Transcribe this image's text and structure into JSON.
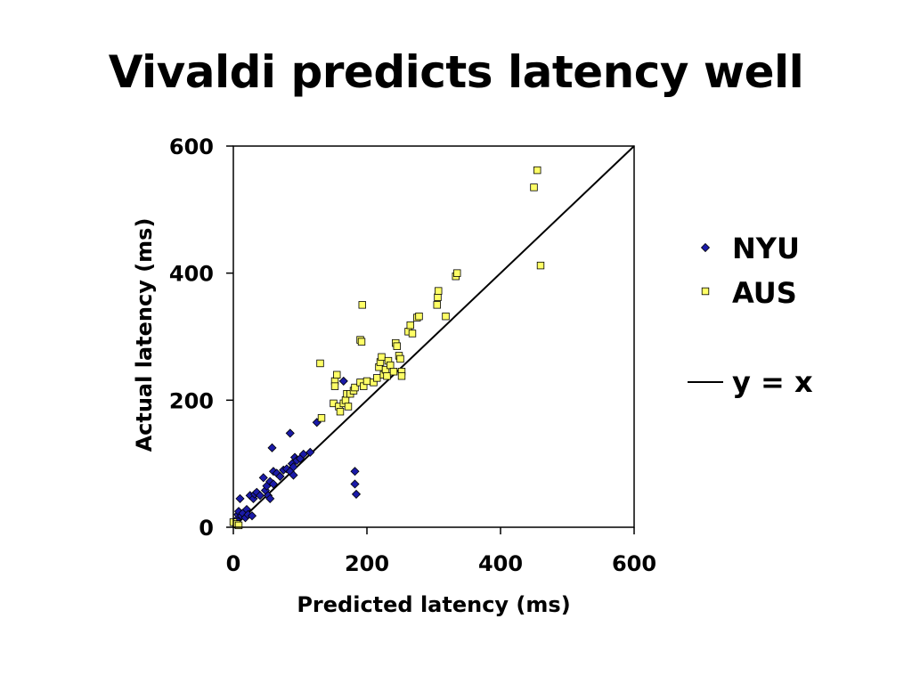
{
  "slide": {
    "title": "Vivaldi predicts latency well"
  },
  "chart_data": {
    "type": "scatter",
    "title": "Vivaldi predicts latency well",
    "xlabel": "Predicted latency (ms)",
    "ylabel": "Actual latency (ms)",
    "xlim": [
      0,
      600
    ],
    "ylim": [
      0,
      600
    ],
    "xticks": [
      0,
      200,
      400,
      600
    ],
    "yticks": [
      0,
      200,
      400,
      600
    ],
    "x_tick_labels": [
      "0",
      "200",
      "400",
      "600"
    ],
    "y_tick_labels": [
      "0",
      "200",
      "400",
      "600"
    ],
    "grid": false,
    "legend_position": "right",
    "reference_line": {
      "label": "y = x",
      "color": "#000000"
    },
    "series": [
      {
        "name": "NYU",
        "marker": "diamond",
        "color": "#1a1aa8",
        "points": [
          [
            2,
            5
          ],
          [
            5,
            12
          ],
          [
            7,
            20
          ],
          [
            8,
            25
          ],
          [
            10,
            45
          ],
          [
            12,
            18
          ],
          [
            14,
            22
          ],
          [
            18,
            15
          ],
          [
            20,
            28
          ],
          [
            22,
            20
          ],
          [
            25,
            50
          ],
          [
            28,
            18
          ],
          [
            30,
            45
          ],
          [
            32,
            52
          ],
          [
            35,
            55
          ],
          [
            40,
            50
          ],
          [
            45,
            78
          ],
          [
            48,
            58
          ],
          [
            50,
            65
          ],
          [
            52,
            50
          ],
          [
            55,
            45
          ],
          [
            55,
            72
          ],
          [
            58,
            125
          ],
          [
            60,
            68
          ],
          [
            60,
            88
          ],
          [
            65,
            85
          ],
          [
            70,
            80
          ],
          [
            75,
            90
          ],
          [
            80,
            92
          ],
          [
            85,
            88
          ],
          [
            85,
            148
          ],
          [
            88,
            100
          ],
          [
            90,
            82
          ],
          [
            90,
            95
          ],
          [
            92,
            110
          ],
          [
            95,
            105
          ],
          [
            100,
            108
          ],
          [
            105,
            115
          ],
          [
            115,
            118
          ],
          [
            125,
            165
          ],
          [
            165,
            230
          ],
          [
            182,
            88
          ],
          [
            182,
            68
          ],
          [
            184,
            52
          ]
        ]
      },
      {
        "name": "AUS",
        "marker": "square",
        "color": "#ffff66",
        "points": [
          [
            0,
            8
          ],
          [
            5,
            5
          ],
          [
            8,
            3
          ],
          [
            130,
            258
          ],
          [
            132,
            172
          ],
          [
            150,
            195
          ],
          [
            152,
            230
          ],
          [
            152,
            222
          ],
          [
            155,
            240
          ],
          [
            158,
            190
          ],
          [
            160,
            182
          ],
          [
            165,
            195
          ],
          [
            168,
            200
          ],
          [
            170,
            210
          ],
          [
            172,
            190
          ],
          [
            175,
            210
          ],
          [
            180,
            215
          ],
          [
            182,
            220
          ],
          [
            190,
            228
          ],
          [
            190,
            295
          ],
          [
            192,
            292
          ],
          [
            193,
            350
          ],
          [
            195,
            222
          ],
          [
            200,
            230
          ],
          [
            210,
            228
          ],
          [
            215,
            235
          ],
          [
            218,
            252
          ],
          [
            220,
            260
          ],
          [
            222,
            268
          ],
          [
            225,
            240
          ],
          [
            228,
            248
          ],
          [
            230,
            238
          ],
          [
            232,
            262
          ],
          [
            235,
            255
          ],
          [
            240,
            245
          ],
          [
            243,
            290
          ],
          [
            245,
            285
          ],
          [
            248,
            270
          ],
          [
            250,
            265
          ],
          [
            252,
            245
          ],
          [
            252,
            238
          ],
          [
            262,
            308
          ],
          [
            265,
            318
          ],
          [
            268,
            305
          ],
          [
            275,
            330
          ],
          [
            278,
            332
          ],
          [
            305,
            350
          ],
          [
            306,
            362
          ],
          [
            307,
            372
          ],
          [
            318,
            332
          ],
          [
            333,
            395
          ],
          [
            335,
            400
          ],
          [
            450,
            535
          ],
          [
            455,
            562
          ],
          [
            460,
            412
          ]
        ]
      }
    ]
  },
  "legend": {
    "items": [
      {
        "label": "NYU"
      },
      {
        "label": "AUS"
      },
      {
        "label": "y = x"
      }
    ]
  }
}
